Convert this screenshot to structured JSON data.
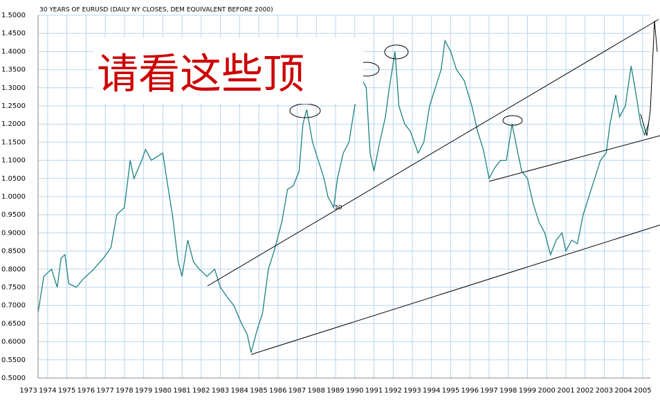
{
  "chart_data": {
    "type": "line",
    "title": "30 YEARS OF EURUSD (DAILY NY CLOSES, DEM EQUIVALENT BEFORE 2000)",
    "annotations": [
      "请看这些顶",
      "30"
    ],
    "x": [
      1973.5,
      1973.8,
      1974.2,
      1974.5,
      1974.7,
      1974.9,
      1975.1,
      1975.5,
      1975.8,
      1976.4,
      1976.9,
      1977.3,
      1977.6,
      1978.0,
      1978.3,
      1978.5,
      1978.9,
      1979.1,
      1979.4,
      1979.7,
      1980.0,
      1980.2,
      1980.5,
      1980.8,
      1981.0,
      1981.3,
      1981.6,
      1981.9,
      1982.3,
      1982.7,
      1983.0,
      1983.4,
      1983.7,
      1984.1,
      1984.4,
      1984.6,
      1984.9,
      1985.2,
      1985.5,
      1985.8,
      1986.2,
      1986.5,
      1986.8,
      1987.1,
      1987.3,
      1987.5,
      1987.8,
      1988.1,
      1988.4,
      1988.6,
      1988.9,
      1989.1,
      1989.4,
      1989.7,
      1990.0,
      1990.3,
      1990.6,
      1990.8,
      1991.0,
      1991.3,
      1991.6,
      1991.8,
      1992.1,
      1992.3,
      1992.6,
      1992.9,
      1993.3,
      1993.6,
      1993.9,
      1994.2,
      1994.5,
      1994.7,
      1995.0,
      1995.3,
      1995.7,
      1996.1,
      1996.4,
      1996.7,
      1997.0,
      1997.3,
      1997.6,
      1997.9,
      1998.2,
      1998.5,
      1998.7,
      1999.0,
      1999.3,
      1999.6,
      1999.9,
      2000.2,
      2000.5,
      2000.8,
      2001.0,
      2001.3,
      2001.6,
      2001.9,
      2002.2,
      2002.5,
      2002.8,
      2003.1,
      2003.3,
      2003.6,
      2003.8,
      2004.1,
      2004.4,
      2004.6,
      2004.9,
      2005.1,
      2005.3
    ],
    "series": [
      {
        "color": "#1a8080",
        "values": [
          0.68,
          0.78,
          0.8,
          0.75,
          0.83,
          0.84,
          0.76,
          0.75,
          0.77,
          0.8,
          0.83,
          0.86,
          0.95,
          0.97,
          1.1,
          1.05,
          1.1,
          1.13,
          1.1,
          1.11,
          1.12,
          1.05,
          0.95,
          0.82,
          0.78,
          0.88,
          0.82,
          0.8,
          0.78,
          0.8,
          0.75,
          0.72,
          0.7,
          0.65,
          0.62,
          0.57,
          0.63,
          0.68,
          0.8,
          0.85,
          0.93,
          1.02,
          1.03,
          1.07,
          1.2,
          1.24,
          1.15,
          1.1,
          1.05,
          1.0,
          0.97,
          1.05,
          1.12,
          1.15,
          1.25,
          1.33,
          1.3,
          1.12,
          1.07,
          1.15,
          1.22,
          1.3,
          1.4,
          1.25,
          1.2,
          1.18,
          1.12,
          1.15,
          1.25,
          1.3,
          1.35,
          1.43,
          1.4,
          1.35,
          1.32,
          1.25,
          1.18,
          1.13,
          1.05,
          1.08,
          1.1,
          1.1,
          1.2,
          1.12,
          1.07,
          1.05,
          0.98,
          0.93,
          0.9,
          0.84,
          0.88,
          0.9,
          0.85,
          0.88,
          0.87,
          0.95,
          1.0,
          1.05,
          1.1,
          1.12,
          1.2,
          1.28,
          1.22,
          1.25,
          1.36,
          1.3,
          1.2,
          1.17,
          1.2
        ]
      }
    ],
    "xlim": [
      1973.5,
      2005.4
    ],
    "xticks": [
      1973,
      1974,
      1975,
      1976,
      1977,
      1978,
      1979,
      1980,
      1981,
      1982,
      1983,
      1984,
      1985,
      1986,
      1987,
      1988,
      1989,
      1990,
      1991,
      1992,
      1993,
      1994,
      1995,
      1996,
      1997,
      1998,
      1999,
      2000,
      2001,
      2002,
      2003,
      2004,
      2005
    ],
    "ylim": [
      0.5,
      1.5
    ],
    "yticks": [
      {
        "value": 0.5,
        "label": "0.5000"
      },
      {
        "value": 0.55,
        "label": "0.5500"
      },
      {
        "value": 0.6,
        "label": "0.6000"
      },
      {
        "value": 0.65,
        "label": "0.6500"
      },
      {
        "value": 0.7,
        "label": "0.7000"
      },
      {
        "value": 0.75,
        "label": "0.7500"
      },
      {
        "value": 0.8,
        "label": "0.8000"
      },
      {
        "value": 0.85,
        "label": "0.8500"
      },
      {
        "value": 0.9,
        "label": "0.9000"
      },
      {
        "value": 0.95,
        "label": "0.9500"
      },
      {
        "value": 1.0,
        "label": "1.0000"
      },
      {
        "value": 1.05,
        "label": "1.0500"
      },
      {
        "value": 1.1,
        "label": "1.1000"
      },
      {
        "value": 1.15,
        "label": "1.1500"
      },
      {
        "value": 1.2,
        "label": "1.2000"
      },
      {
        "value": 1.25,
        "label": "1.2500"
      },
      {
        "value": 1.3,
        "label": "1.3000"
      },
      {
        "value": 1.35,
        "label": "1.3500"
      },
      {
        "value": 1.4,
        "label": "1.4000"
      },
      {
        "value": 1.45,
        "label": "1.4500"
      },
      {
        "value": 1.5,
        "label": "1.5000"
      }
    ],
    "grid": true
  }
}
